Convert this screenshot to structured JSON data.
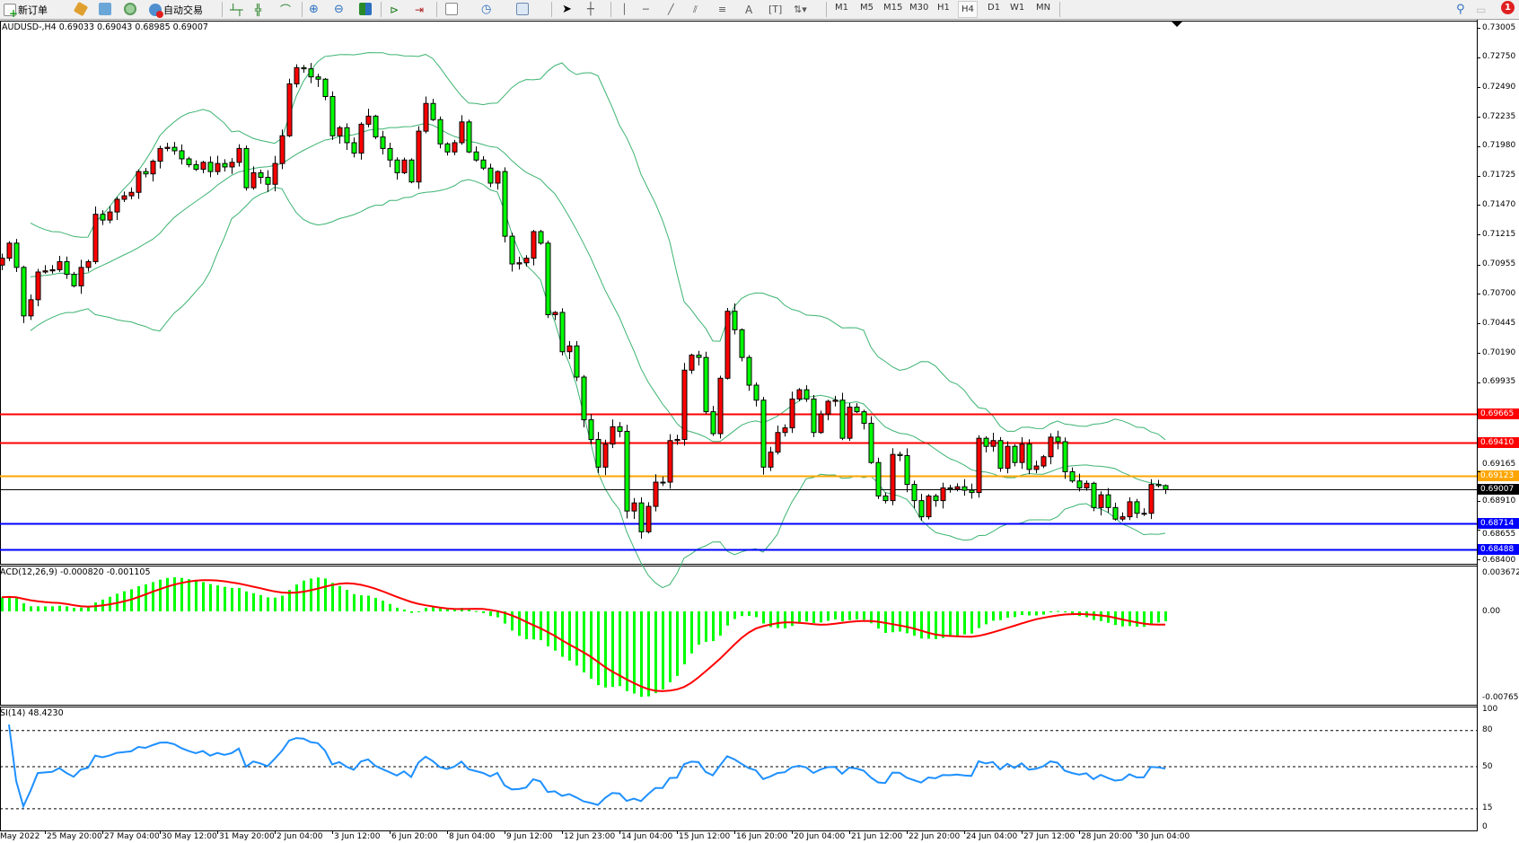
{
  "toolbar": {
    "new_order": "新订单",
    "auto_trading": "自动交易",
    "timeframes": [
      "M1",
      "M5",
      "M15",
      "M30",
      "H1",
      "H4",
      "D1",
      "W1",
      "MN"
    ],
    "active_timeframe": "H4",
    "notification_count": "1",
    "icons": [
      "new-order-icon",
      "market-watch-icon",
      "data-window-icon",
      "signals-icon",
      "auto-trading-icon",
      "bar-chart-icon",
      "candlestick-icon",
      "line-chart-icon",
      "zoom-in-icon",
      "zoom-out-icon",
      "tile-windows-icon",
      "chart-shift-icon",
      "autoscroll-icon",
      "indicators-icon",
      "periods-icon",
      "templates-icon",
      "cursor-icon",
      "crosshair-icon",
      "vertical-line-icon",
      "horizontal-line-icon",
      "trendline-icon",
      "equidistant-channel-icon",
      "fibonacci-icon",
      "text-icon",
      "text-label-icon",
      "arrows-icon",
      "search-icon",
      "chat-icon"
    ]
  },
  "chart": {
    "header": "AUDUSD-,H4  0.69033 0.69043 0.68985 0.69007",
    "symbol": "AUDUSD-",
    "timeframe": "H4",
    "ohlc": {
      "open": 0.69033,
      "high": 0.69043,
      "low": 0.68985,
      "close": 0.69007
    },
    "up_color": "#ff0000",
    "down_color": "#00ff00",
    "band_color": "#3cb371",
    "price_ticks": [
      "0.73005",
      "0.72750",
      "0.72490",
      "0.72235",
      "0.71980",
      "0.71725",
      "0.71470",
      "0.71215",
      "0.70955",
      "0.70700",
      "0.70445",
      "0.70190",
      "0.69935",
      "0.69165",
      "0.68910",
      "0.68655",
      "0.68400"
    ],
    "levels": [
      {
        "price": "0.69665",
        "color": "#ff0000"
      },
      {
        "price": "0.69410",
        "color": "#ff0000"
      },
      {
        "price": "0.69123",
        "color": "#ffa500"
      },
      {
        "price": "0.69007",
        "color": "#000000"
      },
      {
        "price": "0.68714",
        "color": "#0000ff"
      },
      {
        "price": "0.68488",
        "color": "#0000ff"
      }
    ],
    "closes": [
      0.7101,
      0.7114,
      0.7093,
      0.7051,
      0.7065,
      0.7089,
      0.709,
      0.7091,
      0.7098,
      0.7087,
      0.7077,
      0.7093,
      0.7098,
      0.7139,
      0.7134,
      0.7141,
      0.7152,
      0.7155,
      0.7158,
      0.7176,
      0.7174,
      0.7185,
      0.7196,
      0.7197,
      0.7194,
      0.7187,
      0.7182,
      0.7178,
      0.7184,
      0.7176,
      0.7183,
      0.718,
      0.7184,
      0.7196,
      0.7162,
      0.7175,
      0.7171,
      0.7165,
      0.7183,
      0.7207,
      0.7252,
      0.7266,
      0.7265,
      0.7258,
      0.7256,
      0.7241,
      0.7207,
      0.7214,
      0.7201,
      0.7192,
      0.7217,
      0.7224,
      0.7206,
      0.7196,
      0.7186,
      0.7175,
      0.7186,
      0.7167,
      0.7211,
      0.7235,
      0.7221,
      0.72,
      0.7193,
      0.7201,
      0.7219,
      0.7193,
      0.7186,
      0.7179,
      0.7166,
      0.7176,
      0.712,
      0.7096,
      0.7097,
      0.7101,
      0.7124,
      0.7114,
      0.7052,
      0.7054,
      0.702,
      0.7025,
      0.6998,
      0.6961,
      0.6944,
      0.692,
      0.694,
      0.6955,
      0.6951,
      0.6882,
      0.6889,
      0.6864,
      0.6886,
      0.6907,
      0.6907,
      0.6943,
      0.6944,
      0.7004,
      0.7017,
      0.7015,
      0.6968,
      0.6949,
      0.6997,
      0.7055,
      0.7039,
      0.7015,
      0.6991,
      0.6978,
      0.692,
      0.6933,
      0.695,
      0.6954,
      0.6979,
      0.6987,
      0.6979,
      0.695,
      0.6966,
      0.6977,
      0.6978,
      0.6945,
      0.6972,
      0.6968,
      0.6958,
      0.6924,
      0.6895,
      0.6891,
      0.6931,
      0.693,
      0.6905,
      0.6891,
      0.6877,
      0.6895,
      0.6891,
      0.6902,
      0.6901,
      0.6903,
      0.69,
      0.6898,
      0.6945,
      0.6938,
      0.6943,
      0.6919,
      0.6938,
      0.6924,
      0.694,
      0.6918,
      0.6921,
      0.6929,
      0.6946,
      0.6942,
      0.6916,
      0.6908,
      0.6902,
      0.6906,
      0.6885,
      0.6896,
      0.6885,
      0.6875,
      0.6877,
      0.689,
      0.688,
      0.688,
      0.6905,
      0.6904,
      0.69007
    ]
  },
  "macd": {
    "label": "ACD(12,26,9) -0.000820 -0.001105",
    "main": -0.00082,
    "signal": -0.001105,
    "ticks": [
      "0.003672",
      "0.00",
      "-0.007656"
    ],
    "bar_color": "#00ff00",
    "signal_color": "#ff0000"
  },
  "rsi": {
    "label": "SI(14) 48.4230",
    "value": 48.423,
    "ticks": [
      "100",
      "80",
      "50",
      "15",
      "0"
    ],
    "color": "#1e90ff"
  },
  "time_axis": [
    "May 2022",
    "25 May 20:00",
    "27 May 04:00",
    "30 May 12:00",
    "31 May 20:00",
    "2 Jun 04:00",
    "3 Jun 12:00",
    "6 Jun 20:00",
    "8 Jun 04:00",
    "9 Jun 12:00",
    "12 Jun 23:00",
    "14 Jun 04:00",
    "15 Jun 12:00",
    "16 Jun 20:00",
    "20 Jun 04:00",
    "21 Jun 12:00",
    "22 Jun 20:00",
    "24 Jun 04:00",
    "27 Jun 12:00",
    "28 Jun 20:00",
    "30 Jun 04:00"
  ]
}
